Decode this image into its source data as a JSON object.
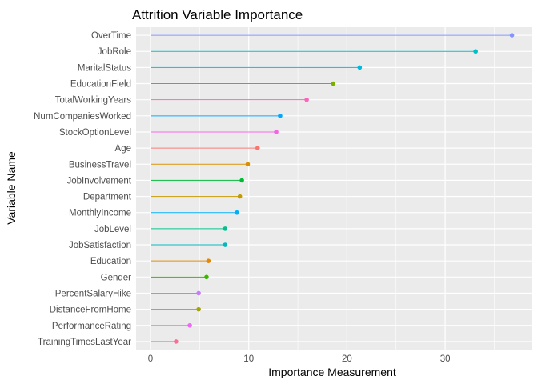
{
  "chart_data": {
    "type": "lollipop",
    "title": "Attrition Variable Importance",
    "xlabel": "Importance Measurement",
    "ylabel": "Variable Name",
    "xlim": [
      0,
      37
    ],
    "xticks": [
      0,
      10,
      20,
      30
    ],
    "xtick_labels": [
      "0",
      "10",
      "20",
      "30"
    ],
    "grid": true,
    "panel_background": "#ebebeb",
    "grid_color": "#ffffff",
    "legend": "none",
    "categories": [
      "OverTime",
      "JobRole",
      "MaritalStatus",
      "EducationField",
      "TotalWorkingYears",
      "NumCompaniesWorked",
      "StockOptionLevel",
      "Age",
      "BusinessTravel",
      "JobInvolvement",
      "Department",
      "MonthlyIncome",
      "JobLevel",
      "JobSatisfaction",
      "Education",
      "Gender",
      "PercentSalaryHike",
      "DistanceFromHome",
      "PerformanceRating",
      "TrainingTimesLastYear"
    ],
    "values": [
      36.8,
      33.1,
      21.3,
      18.6,
      15.9,
      13.2,
      12.8,
      10.9,
      9.9,
      9.3,
      9.1,
      8.8,
      7.6,
      7.6,
      5.9,
      5.7,
      4.9,
      4.9,
      4.0,
      2.6
    ],
    "colors": [
      "#8494FF",
      "#00BFC4",
      "#00BBDB",
      "#7CAE00",
      "#FF62BC",
      "#00A9FF",
      "#F564E3",
      "#F8766D",
      "#D89000",
      "#00BA38",
      "#C49A00",
      "#00B0F6",
      "#00C08B",
      "#00B9BE",
      "#E58700",
      "#39B600",
      "#C77CFF",
      "#A3A500",
      "#E76BF3",
      "#FF6C91"
    ]
  }
}
